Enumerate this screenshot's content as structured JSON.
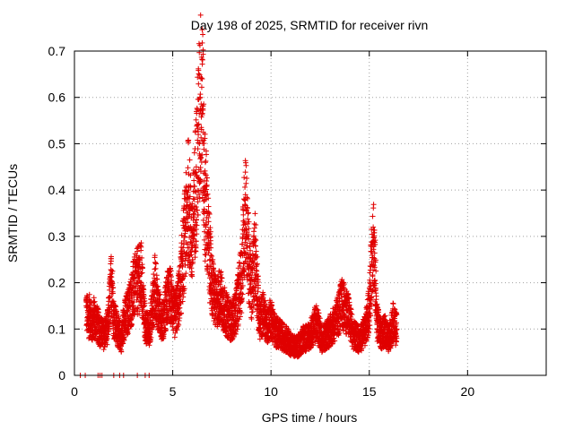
{
  "chart_data": {
    "type": "scatter",
    "title": "Day 198 of 2025, SRMTID for receiver rivn",
    "xlabel": "GPS time / hours",
    "ylabel": "SRMTID / TECUs",
    "xlim": [
      0,
      24
    ],
    "ylim": [
      0,
      0.7
    ],
    "x_ticks": [
      0,
      5,
      10,
      15,
      20
    ],
    "x_tick_labels": [
      "0",
      "5",
      "10",
      "15",
      "20"
    ],
    "y_ticks": [
      0,
      0.1,
      0.2,
      0.3,
      0.4,
      0.5,
      0.6,
      0.7
    ],
    "y_tick_labels": [
      "0",
      "0.1",
      "0.2",
      "0.3",
      "0.4",
      "0.5",
      "0.6",
      "0.7"
    ],
    "grid": true,
    "series": [
      {
        "name": "SRMTID",
        "marker": "+",
        "color": "#e00000",
        "x_range": [
          0.3,
          16.4
        ],
        "zero_points_x": [
          0.3,
          0.55,
          1.2,
          1.3,
          1.4,
          2.0,
          2.3,
          2.5,
          3.2,
          3.6,
          3.8
        ],
        "points": [
          [
            0.6,
            0.15
          ],
          [
            0.7,
            0.12
          ],
          [
            0.8,
            0.14
          ],
          [
            0.9,
            0.11
          ],
          [
            1.0,
            0.13
          ],
          [
            1.1,
            0.12
          ],
          [
            1.3,
            0.1
          ],
          [
            1.5,
            0.09
          ],
          [
            1.7,
            0.11
          ],
          [
            1.9,
            0.22
          ],
          [
            2.0,
            0.13
          ],
          [
            2.2,
            0.1
          ],
          [
            2.4,
            0.08
          ],
          [
            2.5,
            0.12
          ],
          [
            2.7,
            0.14
          ],
          [
            2.9,
            0.17
          ],
          [
            3.0,
            0.19
          ],
          [
            3.2,
            0.21
          ],
          [
            3.4,
            0.22
          ],
          [
            3.6,
            0.11
          ],
          [
            3.8,
            0.1
          ],
          [
            4.0,
            0.16
          ],
          [
            4.1,
            0.2
          ],
          [
            4.3,
            0.14
          ],
          [
            4.5,
            0.12
          ],
          [
            4.7,
            0.17
          ],
          [
            4.9,
            0.18
          ],
          [
            5.1,
            0.13
          ],
          [
            5.3,
            0.17
          ],
          [
            5.4,
            0.2
          ],
          [
            5.6,
            0.3
          ],
          [
            5.7,
            0.34
          ],
          [
            5.8,
            0.4
          ],
          [
            6.0,
            0.28
          ],
          [
            6.1,
            0.38
          ],
          [
            6.2,
            0.45
          ],
          [
            6.3,
            0.52
          ],
          [
            6.4,
            0.6
          ],
          [
            6.5,
            0.64
          ],
          [
            6.6,
            0.42
          ],
          [
            6.7,
            0.38
          ],
          [
            6.8,
            0.3
          ],
          [
            6.9,
            0.25
          ],
          [
            7.0,
            0.2
          ],
          [
            7.2,
            0.16
          ],
          [
            7.4,
            0.18
          ],
          [
            7.6,
            0.15
          ],
          [
            7.8,
            0.13
          ],
          [
            8.0,
            0.12
          ],
          [
            8.2,
            0.14
          ],
          [
            8.5,
            0.22
          ],
          [
            8.7,
            0.39
          ],
          [
            8.8,
            0.3
          ],
          [
            9.0,
            0.18
          ],
          [
            9.2,
            0.28
          ],
          [
            9.4,
            0.12
          ],
          [
            9.6,
            0.14
          ],
          [
            9.8,
            0.11
          ],
          [
            10.0,
            0.13
          ],
          [
            10.2,
            0.1
          ],
          [
            10.5,
            0.09
          ],
          [
            10.8,
            0.08
          ],
          [
            11.0,
            0.07
          ],
          [
            11.3,
            0.06
          ],
          [
            11.6,
            0.08
          ],
          [
            12.0,
            0.09
          ],
          [
            12.3,
            0.12
          ],
          [
            12.6,
            0.08
          ],
          [
            13.0,
            0.1
          ],
          [
            13.3,
            0.12
          ],
          [
            13.6,
            0.16
          ],
          [
            13.9,
            0.14
          ],
          [
            14.2,
            0.09
          ],
          [
            14.5,
            0.08
          ],
          [
            14.8,
            0.1
          ],
          [
            15.0,
            0.15
          ],
          [
            15.2,
            0.32
          ],
          [
            15.4,
            0.12
          ],
          [
            15.6,
            0.09
          ],
          [
            15.8,
            0.1
          ],
          [
            16.0,
            0.08
          ],
          [
            16.2,
            0.12
          ],
          [
            16.4,
            0.1
          ]
        ]
      }
    ]
  }
}
